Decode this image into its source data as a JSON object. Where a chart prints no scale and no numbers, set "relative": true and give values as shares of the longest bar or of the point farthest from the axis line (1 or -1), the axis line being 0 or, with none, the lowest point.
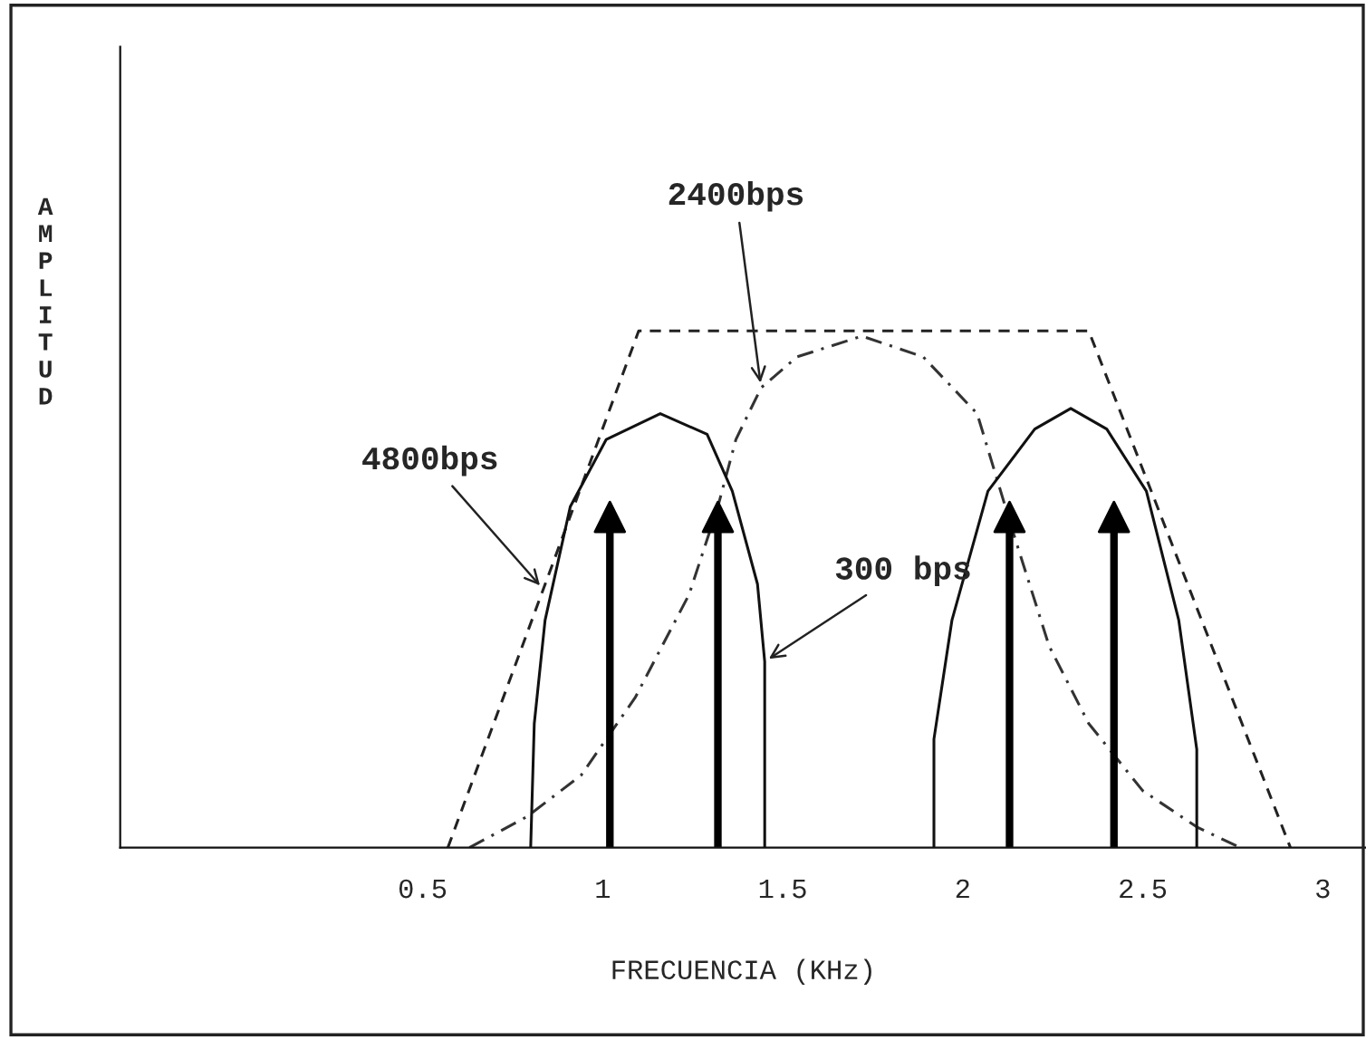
{
  "chart_data": {
    "type": "line",
    "relative": true,
    "xlabel": "FRECUENCIA (KHz)",
    "ylabel": "AMPLITUD",
    "xlim": [
      -0.34,
      3.12
    ],
    "xticks": [
      {
        "value": 0.5,
        "label": "0.5"
      },
      1,
      {
        "value": 1.5,
        "label": "1.5"
      },
      2,
      {
        "value": 2.5,
        "label": "2.5"
      },
      3
    ],
    "grid": false,
    "legend": false,
    "series": [
      {
        "name": "4800bps",
        "color": "#222222",
        "line_style": "dashed",
        "x": [
          0.57,
          1.1,
          2.35,
          2.91
        ],
        "values": [
          0,
          1,
          1,
          0
        ]
      },
      {
        "name": "2400bps",
        "color": "#333333",
        "line_style": "dashdot",
        "x": [
          0.63,
          0.79,
          0.94,
          1.09,
          1.24,
          1.32,
          1.37,
          1.44,
          1.54,
          1.72,
          1.89,
          2.04,
          2.14,
          2.24,
          2.35,
          2.5,
          2.65,
          2.77
        ],
        "values": [
          0,
          0.06,
          0.14,
          0.29,
          0.49,
          0.66,
          0.79,
          0.89,
          0.95,
          0.99,
          0.95,
          0.84,
          0.61,
          0.39,
          0.24,
          0.11,
          0.04,
          0
        ]
      },
      {
        "name": "300 bps",
        "color": "#111111",
        "line_style": "solid",
        "x": [
          0.8,
          0.81,
          0.84,
          0.91,
          1.01,
          1.16,
          1.29,
          1.36,
          1.43,
          1.45,
          1.45
        ],
        "values": [
          0,
          0.24,
          0.44,
          0.66,
          0.79,
          0.84,
          0.8,
          0.69,
          0.51,
          0.36,
          0
        ]
      },
      {
        "color": "#111111",
        "line_style": "solid",
        "x": [
          1.92,
          1.92,
          1.97,
          2.07,
          2.2,
          2.3,
          2.4,
          2.51,
          2.6,
          2.65,
          2.65
        ],
        "values": [
          0,
          0.21,
          0.44,
          0.69,
          0.81,
          0.85,
          0.81,
          0.69,
          0.44,
          0.19,
          0
        ]
      },
      {
        "type": "lollipop",
        "marker": "triangle",
        "color": "#000000",
        "x": [
          1.02,
          1.32,
          2.13,
          2.42
        ],
        "values": [
          0.64,
          0.64,
          0.64,
          0.64
        ]
      }
    ]
  }
}
